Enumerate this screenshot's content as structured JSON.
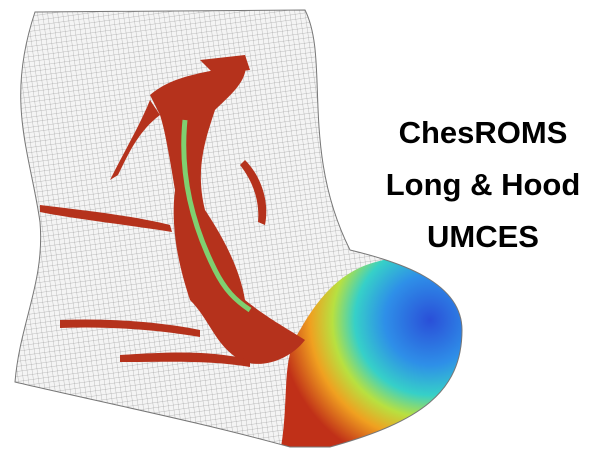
{
  "caption": {
    "lines": [
      "ChesROMS",
      "Long & Hood",
      "UMCES"
    ]
  }
}
